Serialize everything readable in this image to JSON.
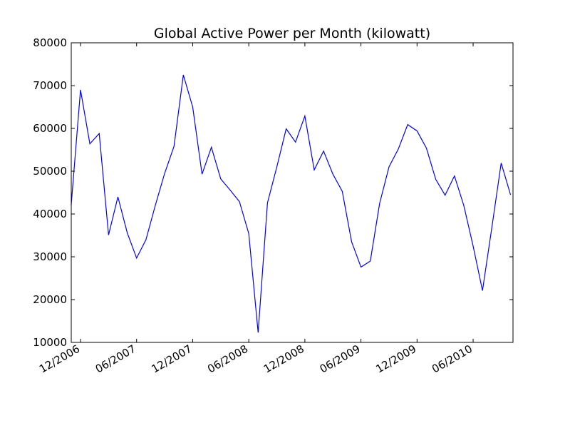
{
  "chart_data": {
    "type": "line",
    "title": "Global Active Power per Month (kilowatt)",
    "xlabel": "",
    "ylabel": "",
    "ylim": [
      10000,
      80000
    ],
    "y_ticks": [
      10000,
      20000,
      30000,
      40000,
      50000,
      60000,
      70000,
      80000
    ],
    "x_ticks": [
      "12/2006",
      "06/2007",
      "12/2007",
      "06/2008",
      "12/2008",
      "06/2009",
      "12/2009",
      "06/2010"
    ],
    "grid": false,
    "series": [
      {
        "color": "#0000ff",
        "x": [
          "11/2006",
          "12/2006",
          "01/2007",
          "02/2007",
          "03/2007",
          "04/2007",
          "05/2007",
          "06/2007",
          "07/2007",
          "08/2007",
          "09/2007",
          "10/2007",
          "11/2007",
          "12/2007",
          "01/2008",
          "02/2008",
          "03/2008",
          "04/2008",
          "05/2008",
          "06/2008",
          "07/2008",
          "08/2008",
          "09/2008",
          "10/2008",
          "11/2008",
          "12/2008",
          "01/2009",
          "02/2009",
          "03/2009",
          "04/2009",
          "05/2009",
          "06/2009",
          "07/2009",
          "08/2009",
          "09/2009",
          "10/2009",
          "11/2009",
          "12/2009",
          "01/2010",
          "02/2010",
          "03/2010",
          "04/2010",
          "05/2010",
          "06/2010",
          "07/2010",
          "08/2010",
          "09/2010",
          "10/2010"
        ],
        "values": [
          42000,
          69000,
          56400,
          58800,
          35100,
          44000,
          35600,
          29700,
          34000,
          42000,
          49500,
          55800,
          72500,
          65000,
          49300,
          55600,
          48200,
          45600,
          42900,
          35400,
          12300,
          42600,
          51000,
          59900,
          56800,
          62900,
          50300,
          54700,
          49300,
          45300,
          33500,
          27600,
          29000,
          42500,
          51000,
          55200,
          60900,
          59400,
          55400,
          48100,
          44400,
          48900,
          42000,
          32500,
          22100,
          36800,
          51900,
          44500
        ]
      }
    ]
  }
}
